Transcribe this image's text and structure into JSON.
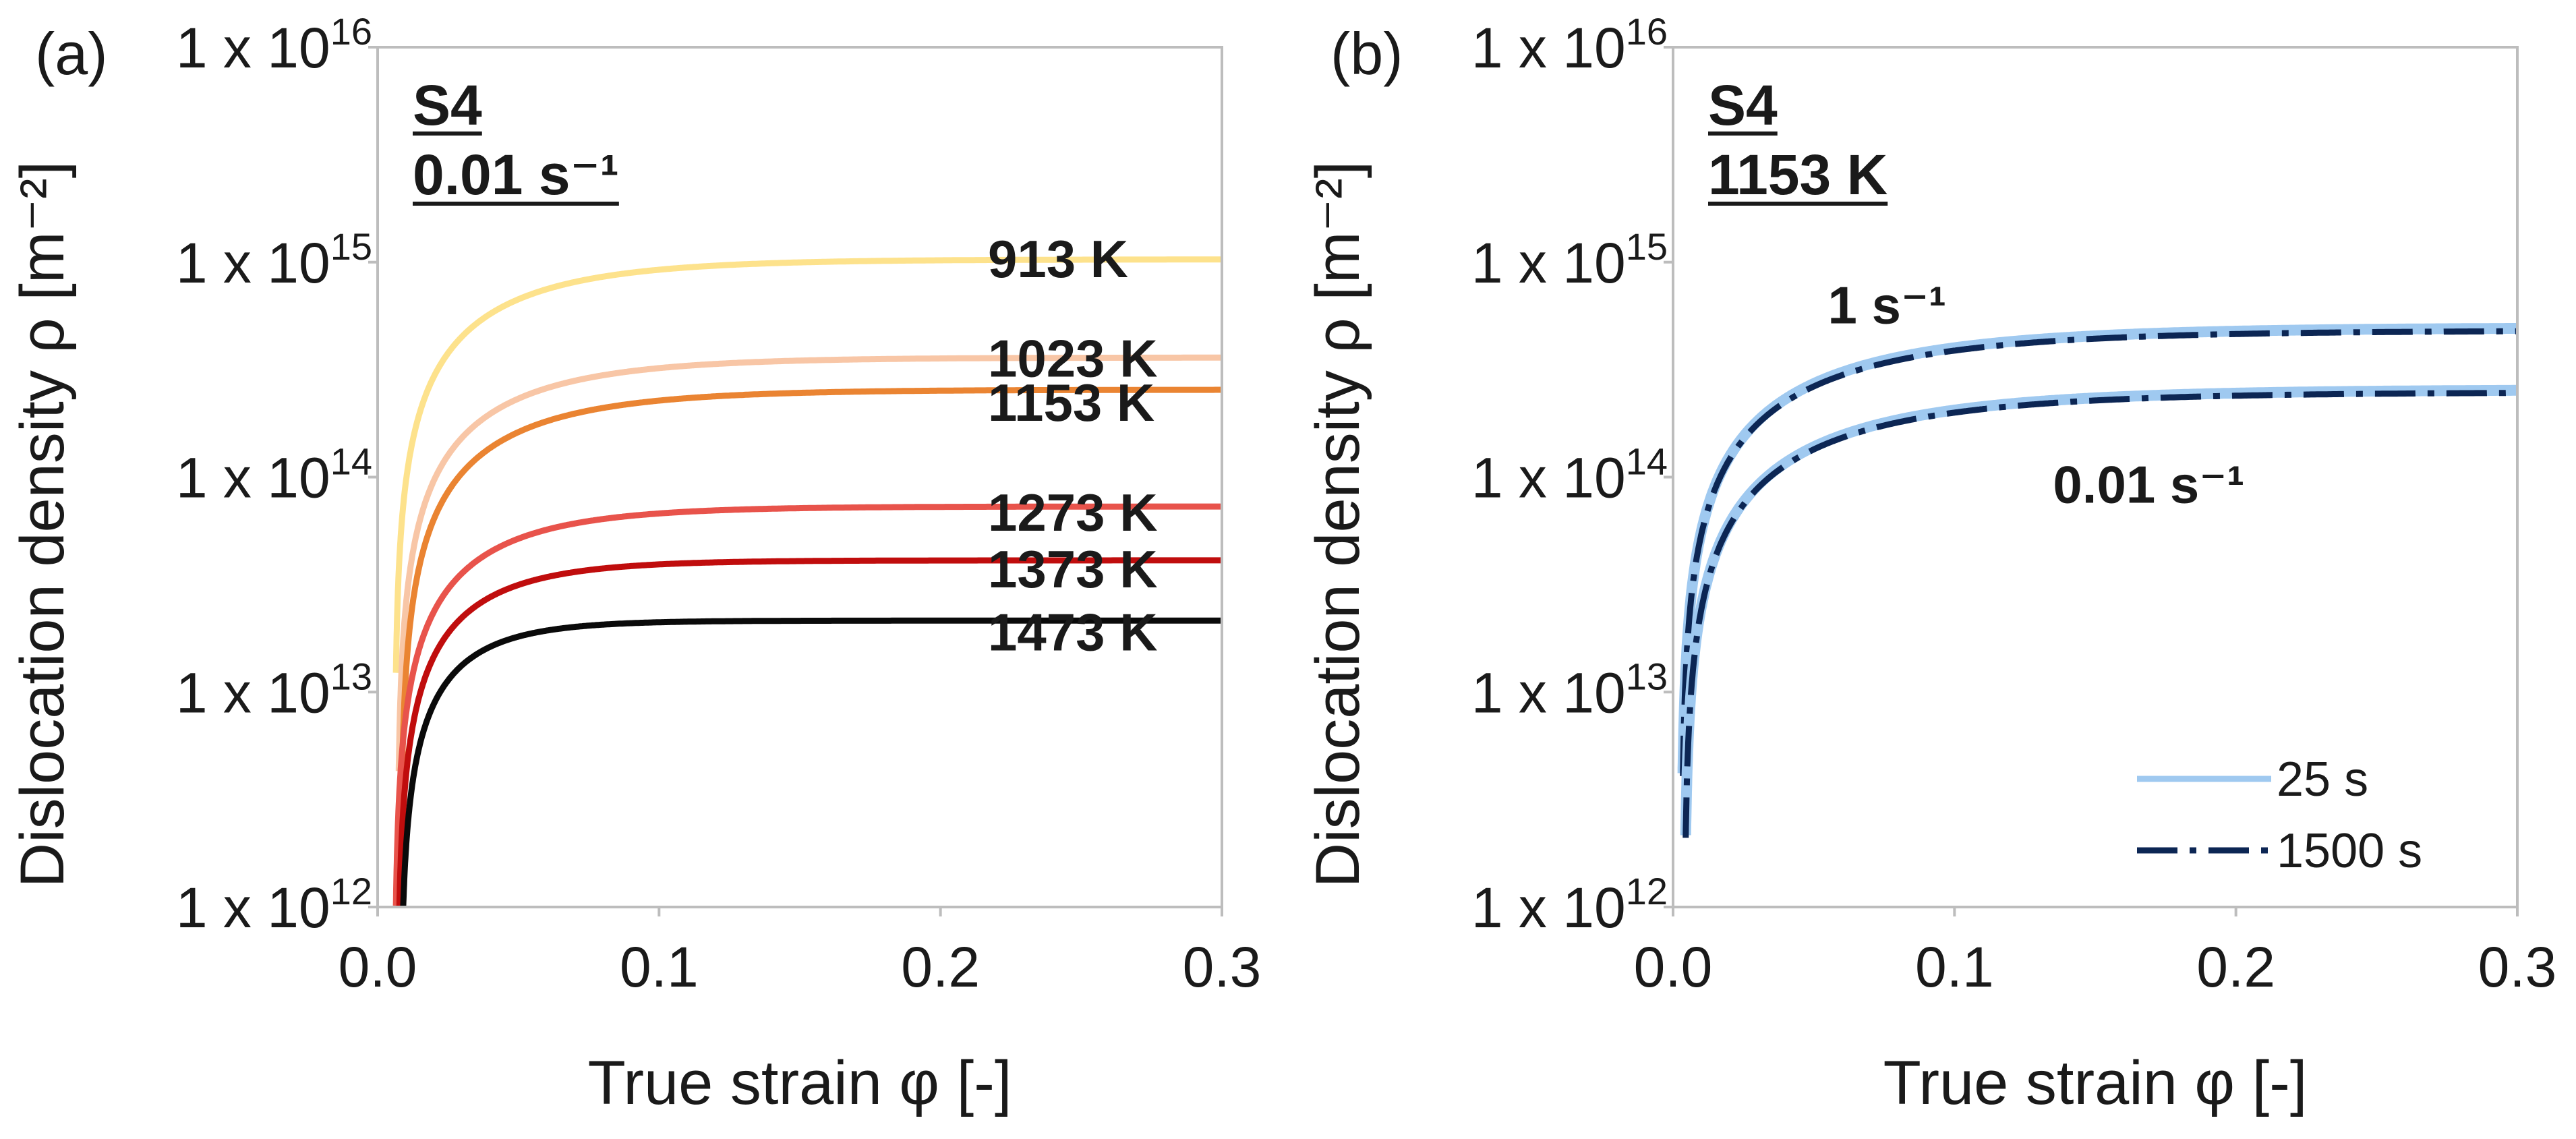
{
  "chart_data": [
    {
      "type": "line",
      "panel_label": "(a)",
      "title_lines": [
        "S4",
        "0.01 s⁻¹"
      ],
      "xlabel": "True strain φ [-]",
      "ylabel": "Dislocation density ρ [m⁻²]",
      "xlim": [
        0.0,
        0.3
      ],
      "ylim": [
        1000000000000.0,
        1e+16
      ],
      "yscale": "log",
      "xticks": [
        {
          "value": 0.0,
          "label": "0.0"
        },
        {
          "value": 0.1,
          "label": "0.1"
        },
        {
          "value": 0.2,
          "label": "0.2"
        },
        {
          "value": 0.3,
          "label": "0.3"
        }
      ],
      "yticks": [
        {
          "value": 1000000000000.0,
          "base": "1 x 10",
          "exp": "12"
        },
        {
          "value": 10000000000000.0,
          "base": "1 x 10",
          "exp": "13"
        },
        {
          "value": 100000000000000.0,
          "base": "1 x 10",
          "exp": "14"
        },
        {
          "value": 1000000000000000.0,
          "base": "1 x 10",
          "exp": "15"
        },
        {
          "value": 1e+16,
          "base": "1 x 10",
          "exp": "16"
        }
      ],
      "grid": false,
      "series": [
        {
          "name": "913 K",
          "color": "#fde28c",
          "x0": 0.006,
          "rho_max": 1030000000000000.0,
          "k": 24
        },
        {
          "name": "1023 K",
          "color": "#f8c6a6",
          "x0": 0.007,
          "rho_max": 360000000000000.0,
          "k": 24
        },
        {
          "name": "1153 K",
          "color": "#ea8432",
          "x0": 0.008,
          "rho_max": 255000000000000.0,
          "k": 24
        },
        {
          "name": "1273 K",
          "color": "#e8534b",
          "x0": 0.006,
          "rho_max": 73000000000000.0,
          "k": 28
        },
        {
          "name": "1373 K",
          "color": "#c00d0d",
          "x0": 0.007,
          "rho_max": 41000000000000.0,
          "k": 34
        },
        {
          "name": "1473 K",
          "color": "#0a0a0a",
          "x0": 0.008,
          "rho_max": 21500000000000.0,
          "k": 44
        }
      ],
      "curve_labels": [
        {
          "text": "913 K",
          "series": "913 K"
        },
        {
          "text": "1023 K",
          "series": "1023 K"
        },
        {
          "text": "1153 K",
          "series": "1153 K"
        },
        {
          "text": "1273 K",
          "series": "1273 K"
        },
        {
          "text": "1373 K",
          "series": "1373 K"
        },
        {
          "text": "1473 K",
          "series": "1473 K"
        }
      ]
    },
    {
      "type": "line",
      "panel_label": "(b)",
      "title_lines": [
        "S4",
        "1153 K"
      ],
      "xlabel": "True strain φ [-]",
      "ylabel": "Dislocation density ρ [m⁻²]",
      "xlim": [
        0.0,
        0.3
      ],
      "ylim": [
        1000000000000.0,
        1e+16
      ],
      "yscale": "log",
      "xticks": [
        {
          "value": 0.0,
          "label": "0.0"
        },
        {
          "value": 0.1,
          "label": "0.1"
        },
        {
          "value": 0.2,
          "label": "0.2"
        },
        {
          "value": 0.3,
          "label": "0.3"
        }
      ],
      "yticks": [
        {
          "value": 1000000000000.0,
          "base": "1 x 10",
          "exp": "12"
        },
        {
          "value": 10000000000000.0,
          "base": "1 x 10",
          "exp": "13"
        },
        {
          "value": 100000000000000.0,
          "base": "1 x 10",
          "exp": "14"
        },
        {
          "value": 1000000000000000.0,
          "base": "1 x 10",
          "exp": "15"
        },
        {
          "value": 1e+16,
          "base": "1 x 10",
          "exp": "16"
        }
      ],
      "grid": false,
      "legend": {
        "position": "bottom-right",
        "entries": [
          {
            "name": "25 s",
            "color": "#9fc9f0",
            "style": "solid"
          },
          {
            "name": "1500 s",
            "color": "#0c2654",
            "style": "dashdot"
          }
        ]
      },
      "series": [
        {
          "name": "25 s (1 s⁻¹)",
          "color": "#9fc9f0",
          "style": "solid",
          "x0": 0.003,
          "rho_max": 495000000000000.0,
          "k": 17
        },
        {
          "name": "1500 s (1 s⁻¹)",
          "color": "#0c2654",
          "style": "dashdot",
          "x0": 0.003,
          "rho_max": 480000000000000.0,
          "k": 17
        },
        {
          "name": "25 s (0.01 s⁻¹)",
          "color": "#9fc9f0",
          "style": "solid",
          "x0": 0.004,
          "rho_max": 255000000000000.0,
          "k": 17
        },
        {
          "name": "1500 s (0.01 s⁻¹)",
          "color": "#0c2654",
          "style": "dashdot",
          "x0": 0.004,
          "rho_max": 248000000000000.0,
          "k": 17
        }
      ],
      "curve_labels": [
        {
          "text": "1 s⁻¹",
          "x": 0.055,
          "y": 520000000000000.0
        },
        {
          "text": "0.01 s⁻¹",
          "x": 0.135,
          "y": 76000000000000.0
        }
      ]
    }
  ]
}
